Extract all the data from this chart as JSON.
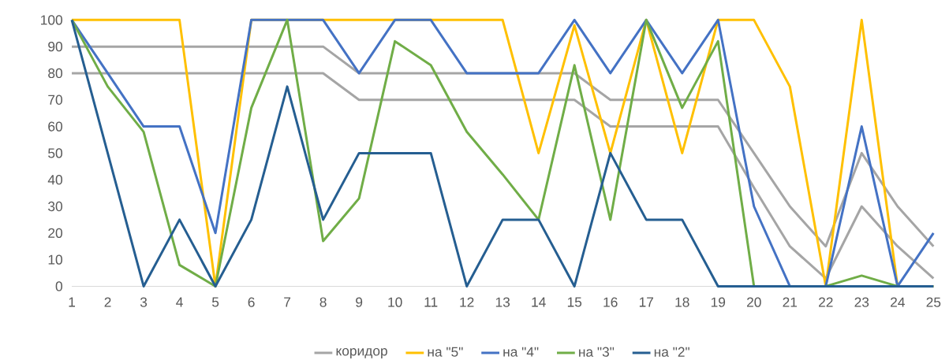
{
  "chart_data": {
    "type": "line",
    "categories": [
      "1",
      "2",
      "3",
      "4",
      "5",
      "6",
      "7",
      "8",
      "9",
      "10",
      "11",
      "12",
      "13",
      "14",
      "15",
      "16",
      "17",
      "18",
      "19",
      "20",
      "21",
      "22",
      "23",
      "24",
      "25"
    ],
    "ylim": [
      0,
      100
    ],
    "yticks": [
      0,
      10,
      20,
      30,
      40,
      50,
      60,
      70,
      80,
      90,
      100
    ],
    "legend": "bottom",
    "series": [
      {
        "name": "коридор",
        "color": "#a5a5a5",
        "values": [
          90,
          90,
          90,
          90,
          90,
          90,
          90,
          90,
          80,
          80,
          80,
          80,
          80,
          80,
          80,
          70,
          70,
          70,
          70,
          50,
          30,
          15,
          50,
          30,
          15
        ]
      },
      {
        "color": "#a5a5a5",
        "values": [
          80,
          80,
          80,
          80,
          80,
          80,
          80,
          80,
          70,
          70,
          70,
          70,
          70,
          70,
          70,
          60,
          60,
          60,
          60,
          37,
          15,
          3,
          30,
          15,
          3
        ]
      },
      {
        "name": "на \"5\"",
        "color": "#ffc000",
        "values": [
          100,
          100,
          100,
          100,
          0,
          100,
          100,
          100,
          100,
          100,
          100,
          100,
          100,
          50,
          98,
          50,
          100,
          50,
          100,
          100,
          75,
          0,
          100,
          0,
          0
        ]
      },
      {
        "name": "на \"4\"",
        "color": "#4472c4",
        "values": [
          100,
          80,
          60,
          60,
          20,
          100,
          100,
          100,
          80,
          100,
          100,
          80,
          80,
          80,
          100,
          80,
          100,
          80,
          100,
          30,
          0,
          0,
          60,
          0,
          20
        ]
      },
      {
        "name": "на \"3\"",
        "color": "#70ad47",
        "values": [
          100,
          75,
          58,
          8,
          0,
          67,
          100,
          17,
          33,
          92,
          83,
          58,
          42,
          25,
          83,
          25,
          100,
          67,
          92,
          0,
          0,
          0,
          4,
          0,
          0
        ]
      },
      {
        "name": "на \"2\"",
        "color": "#255e91",
        "values": [
          100,
          50,
          0,
          25,
          0,
          25,
          75,
          25,
          50,
          50,
          50,
          0,
          25,
          25,
          0,
          50,
          25,
          25,
          0,
          0,
          0,
          0,
          0,
          0,
          0
        ]
      }
    ]
  }
}
